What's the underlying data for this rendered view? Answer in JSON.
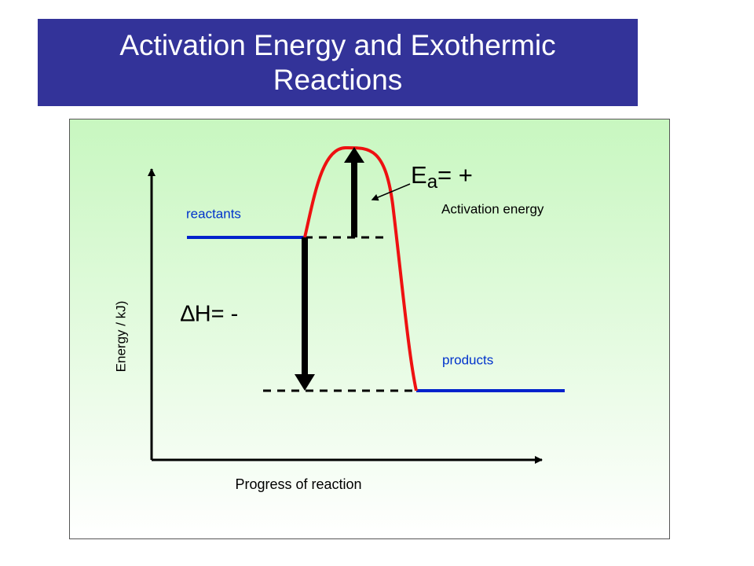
{
  "header": {
    "title": "Activation Energy and Exothermic Reactions"
  },
  "diagram": {
    "reactants": "reactants",
    "products": "products",
    "activation_energy": "Activation energy",
    "ea": {
      "symbol": "E",
      "subscript": "a",
      "sign": "= +"
    },
    "delta_h": "∆H= -",
    "y_axis_label": "Energy / kJ)",
    "x_axis_label": "Progress of reaction"
  }
}
